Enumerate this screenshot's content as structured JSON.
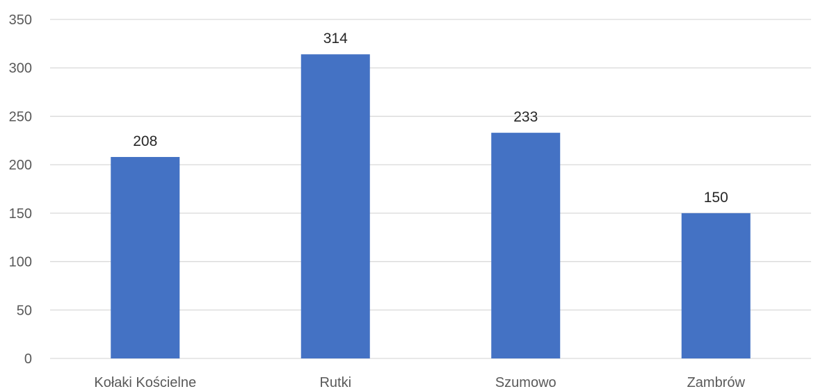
{
  "chart_data": {
    "type": "bar",
    "title": "",
    "xlabel": "",
    "ylabel": "",
    "categories": [
      "Kołaki Kościelne",
      "Rutki",
      "Szumowo",
      "Zambrów"
    ],
    "values": [
      208,
      314,
      233,
      150
    ],
    "ylim": [
      0,
      350
    ],
    "yticks": [
      0,
      50,
      100,
      150,
      200,
      250,
      300,
      350
    ],
    "grid": true,
    "legend": "none",
    "data_labels": true,
    "colors": {
      "bar": "#4472c4"
    }
  }
}
